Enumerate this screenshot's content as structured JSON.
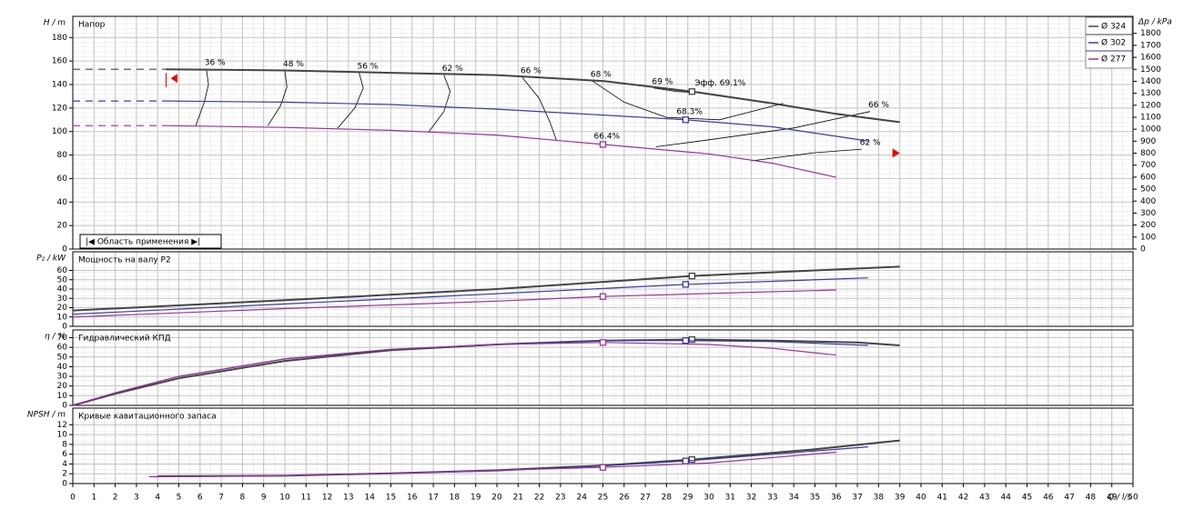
{
  "chart_data": [
    {
      "type": "line",
      "title": "Напор",
      "ylabel": "H / m",
      "y2label": "Δp / kPa",
      "range_label": "|◀ Область применения ▶|",
      "xlim": [
        0,
        50
      ],
      "ylim": [
        0,
        198
      ],
      "yticks": [
        0,
        20,
        40,
        60,
        80,
        100,
        120,
        140,
        160,
        180
      ],
      "y2lim": [
        0,
        1942
      ],
      "y2ticks": [
        0,
        100,
        200,
        300,
        400,
        500,
        600,
        700,
        800,
        900,
        1000,
        1100,
        1200,
        1300,
        1400,
        1500,
        1600,
        1700,
        1800
      ],
      "grid": true,
      "legend": "upper right",
      "series": [
        {
          "name": "Ø 324",
          "color": "#444444",
          "x": [
            4.4,
            10,
            15,
            20,
            25,
            29.2,
            33,
            36,
            39
          ],
          "values": [
            153,
            152,
            150,
            148,
            143,
            134,
            124,
            115,
            108
          ],
          "operating_q": 29.2,
          "annotation": "Эфф. 69.1%"
        },
        {
          "name": "Ø 302",
          "color": "#3a3aa8",
          "x": [
            4.4,
            10,
            15,
            20,
            25,
            28.9,
            33,
            37.5
          ],
          "values": [
            126,
            125,
            123,
            119,
            114,
            110,
            104,
            92
          ],
          "operating_q": 28.9,
          "annotation": "68.3%"
        },
        {
          "name": "Ø 277",
          "color": "#993399",
          "x": [
            4.4,
            10,
            15,
            20,
            25,
            30,
            33,
            36
          ],
          "values": [
            105,
            103.5,
            101,
            97,
            89,
            81,
            73,
            61
          ],
          "operating_q": 25,
          "annotation": "66.4%"
        },
        {
          "color": "#444444",
          "dash": true,
          "x": [
            0,
            4.4
          ],
          "values": [
            153,
            153
          ]
        },
        {
          "color": "#3a3aa8",
          "dash": true,
          "x": [
            0,
            4.4
          ],
          "values": [
            126,
            126
          ]
        },
        {
          "color": "#993399",
          "dash": true,
          "x": [
            0,
            4.4
          ],
          "values": [
            105,
            105
          ]
        }
      ],
      "contours": [
        {
          "label": "36 %",
          "x": [
            6.3,
            6.4,
            6.2,
            5.8
          ],
          "values": [
            153,
            140,
            125,
            105
          ]
        },
        {
          "label": "48 %",
          "x": [
            10,
            10.1,
            9.8,
            9.2
          ],
          "values": [
            152,
            138,
            122,
            105
          ]
        },
        {
          "label": "56 %",
          "x": [
            13.5,
            13.7,
            13.3,
            12.5
          ],
          "values": [
            150,
            137,
            120,
            103
          ]
        },
        {
          "label": "62 %",
          "x": [
            17.5,
            17.8,
            17.5,
            16.8
          ],
          "values": [
            148,
            134,
            117,
            100
          ]
        },
        {
          "label": "66 %",
          "x": [
            21.2,
            22,
            22.5,
            22.8
          ],
          "values": [
            146,
            128,
            108,
            93
          ]
        },
        {
          "label": "68 %",
          "x": [
            24.5,
            26,
            28,
            30.5,
            33.5
          ],
          "values": [
            143,
            125,
            112,
            110,
            124
          ]
        },
        {
          "label": "69 %",
          "x": [
            27.4,
            28.5,
            29.5
          ],
          "values": [
            137,
            134,
            133
          ]
        },
        {
          "label": "66 %",
          "x": [
            37.6,
            34,
            30,
            27.5
          ],
          "values": [
            117,
            103,
            93,
            87
          ]
        },
        {
          "label": "62 %",
          "x": [
            37.2,
            35,
            32
          ],
          "values": [
            85,
            82,
            75
          ]
        }
      ]
    },
    {
      "type": "line",
      "title": "Мощность на валу P2",
      "ylabel": "P₂ / kW",
      "xlim": [
        0,
        50
      ],
      "ylim": [
        0,
        80
      ],
      "yticks": [
        0,
        10,
        20,
        30,
        40,
        50,
        60
      ],
      "grid": true,
      "series": [
        {
          "color": "#444444",
          "x": [
            0,
            10,
            20,
            29.2,
            35,
            39
          ],
          "values": [
            17,
            28,
            40,
            54,
            60,
            64
          ],
          "operating_q": 29.2
        },
        {
          "color": "#3a3aa8",
          "x": [
            0,
            10,
            20,
            28.9,
            37.5
          ],
          "values": [
            13,
            24,
            35,
            45,
            52
          ],
          "operating_q": 28.9
        },
        {
          "color": "#993399",
          "x": [
            0,
            10,
            20,
            25,
            36
          ],
          "values": [
            10,
            19,
            27,
            32,
            39
          ],
          "operating_q": 25
        }
      ]
    },
    {
      "type": "line",
      "title": "Гидравлический КПД",
      "ylabel": "η / %",
      "xlim": [
        0,
        50
      ],
      "ylim": [
        0,
        78
      ],
      "yticks": [
        0,
        10,
        20,
        30,
        40,
        50,
        60,
        70
      ],
      "grid": true,
      "series": [
        {
          "color": "#444444",
          "x": [
            0,
            2,
            5,
            10,
            15,
            20,
            25,
            29.2,
            33,
            37,
            39
          ],
          "values": [
            0,
            12,
            28,
            46,
            57,
            63,
            67,
            68,
            67,
            65,
            62
          ],
          "operating_q": 29.2
        },
        {
          "color": "#3a3aa8",
          "x": [
            0,
            2,
            5,
            10,
            15,
            20,
            25,
            28.9,
            33,
            37.5
          ],
          "values": [
            0,
            13,
            30,
            48,
            58,
            63,
            67,
            67,
            66,
            62
          ],
          "operating_q": 28.9
        },
        {
          "color": "#993399",
          "x": [
            0,
            2,
            5,
            10,
            15,
            20,
            25,
            30,
            33,
            36
          ],
          "values": [
            0,
            13,
            30,
            48,
            58,
            63,
            65,
            63,
            59,
            52
          ],
          "operating_q": 25
        }
      ]
    },
    {
      "type": "line",
      "title": "Кривые кавитационного запаса",
      "ylabel": "NPSH / m",
      "xlabel": "Q / l/s",
      "xlim": [
        0,
        50
      ],
      "ylim": [
        0,
        15.4
      ],
      "yticks": [
        0,
        2,
        4,
        6,
        8,
        10,
        12
      ],
      "grid": true,
      "xticks": [
        0,
        1,
        2,
        3,
        4,
        5,
        6,
        7,
        8,
        9,
        10,
        11,
        12,
        13,
        14,
        15,
        16,
        17,
        18,
        19,
        20,
        21,
        22,
        23,
        24,
        25,
        26,
        27,
        28,
        29,
        30,
        31,
        32,
        33,
        34,
        35,
        36,
        37,
        38,
        39,
        40,
        41,
        42,
        43,
        44,
        45,
        46,
        47,
        48,
        49,
        50
      ],
      "series": [
        {
          "color": "#444444",
          "x": [
            4,
            10,
            15,
            20,
            25,
            29.2,
            35,
            39
          ],
          "values": [
            1.5,
            1.6,
            2.1,
            2.7,
            3.7,
            4.9,
            7,
            8.8
          ],
          "operating_q": 29.2
        },
        {
          "color": "#3a3aa8",
          "x": [
            3.8,
            10,
            15,
            20,
            25,
            28.9,
            37.5
          ],
          "values": [
            1.4,
            1.6,
            2.1,
            2.6,
            3.6,
            4.6,
            7.5
          ],
          "operating_q": 28.9
        },
        {
          "color": "#993399",
          "x": [
            3.6,
            10,
            15,
            20,
            25,
            30,
            36
          ],
          "values": [
            1.4,
            1.6,
            2.1,
            2.7,
            3.3,
            4.2,
            6.4
          ],
          "operating_q": 25
        }
      ]
    }
  ]
}
